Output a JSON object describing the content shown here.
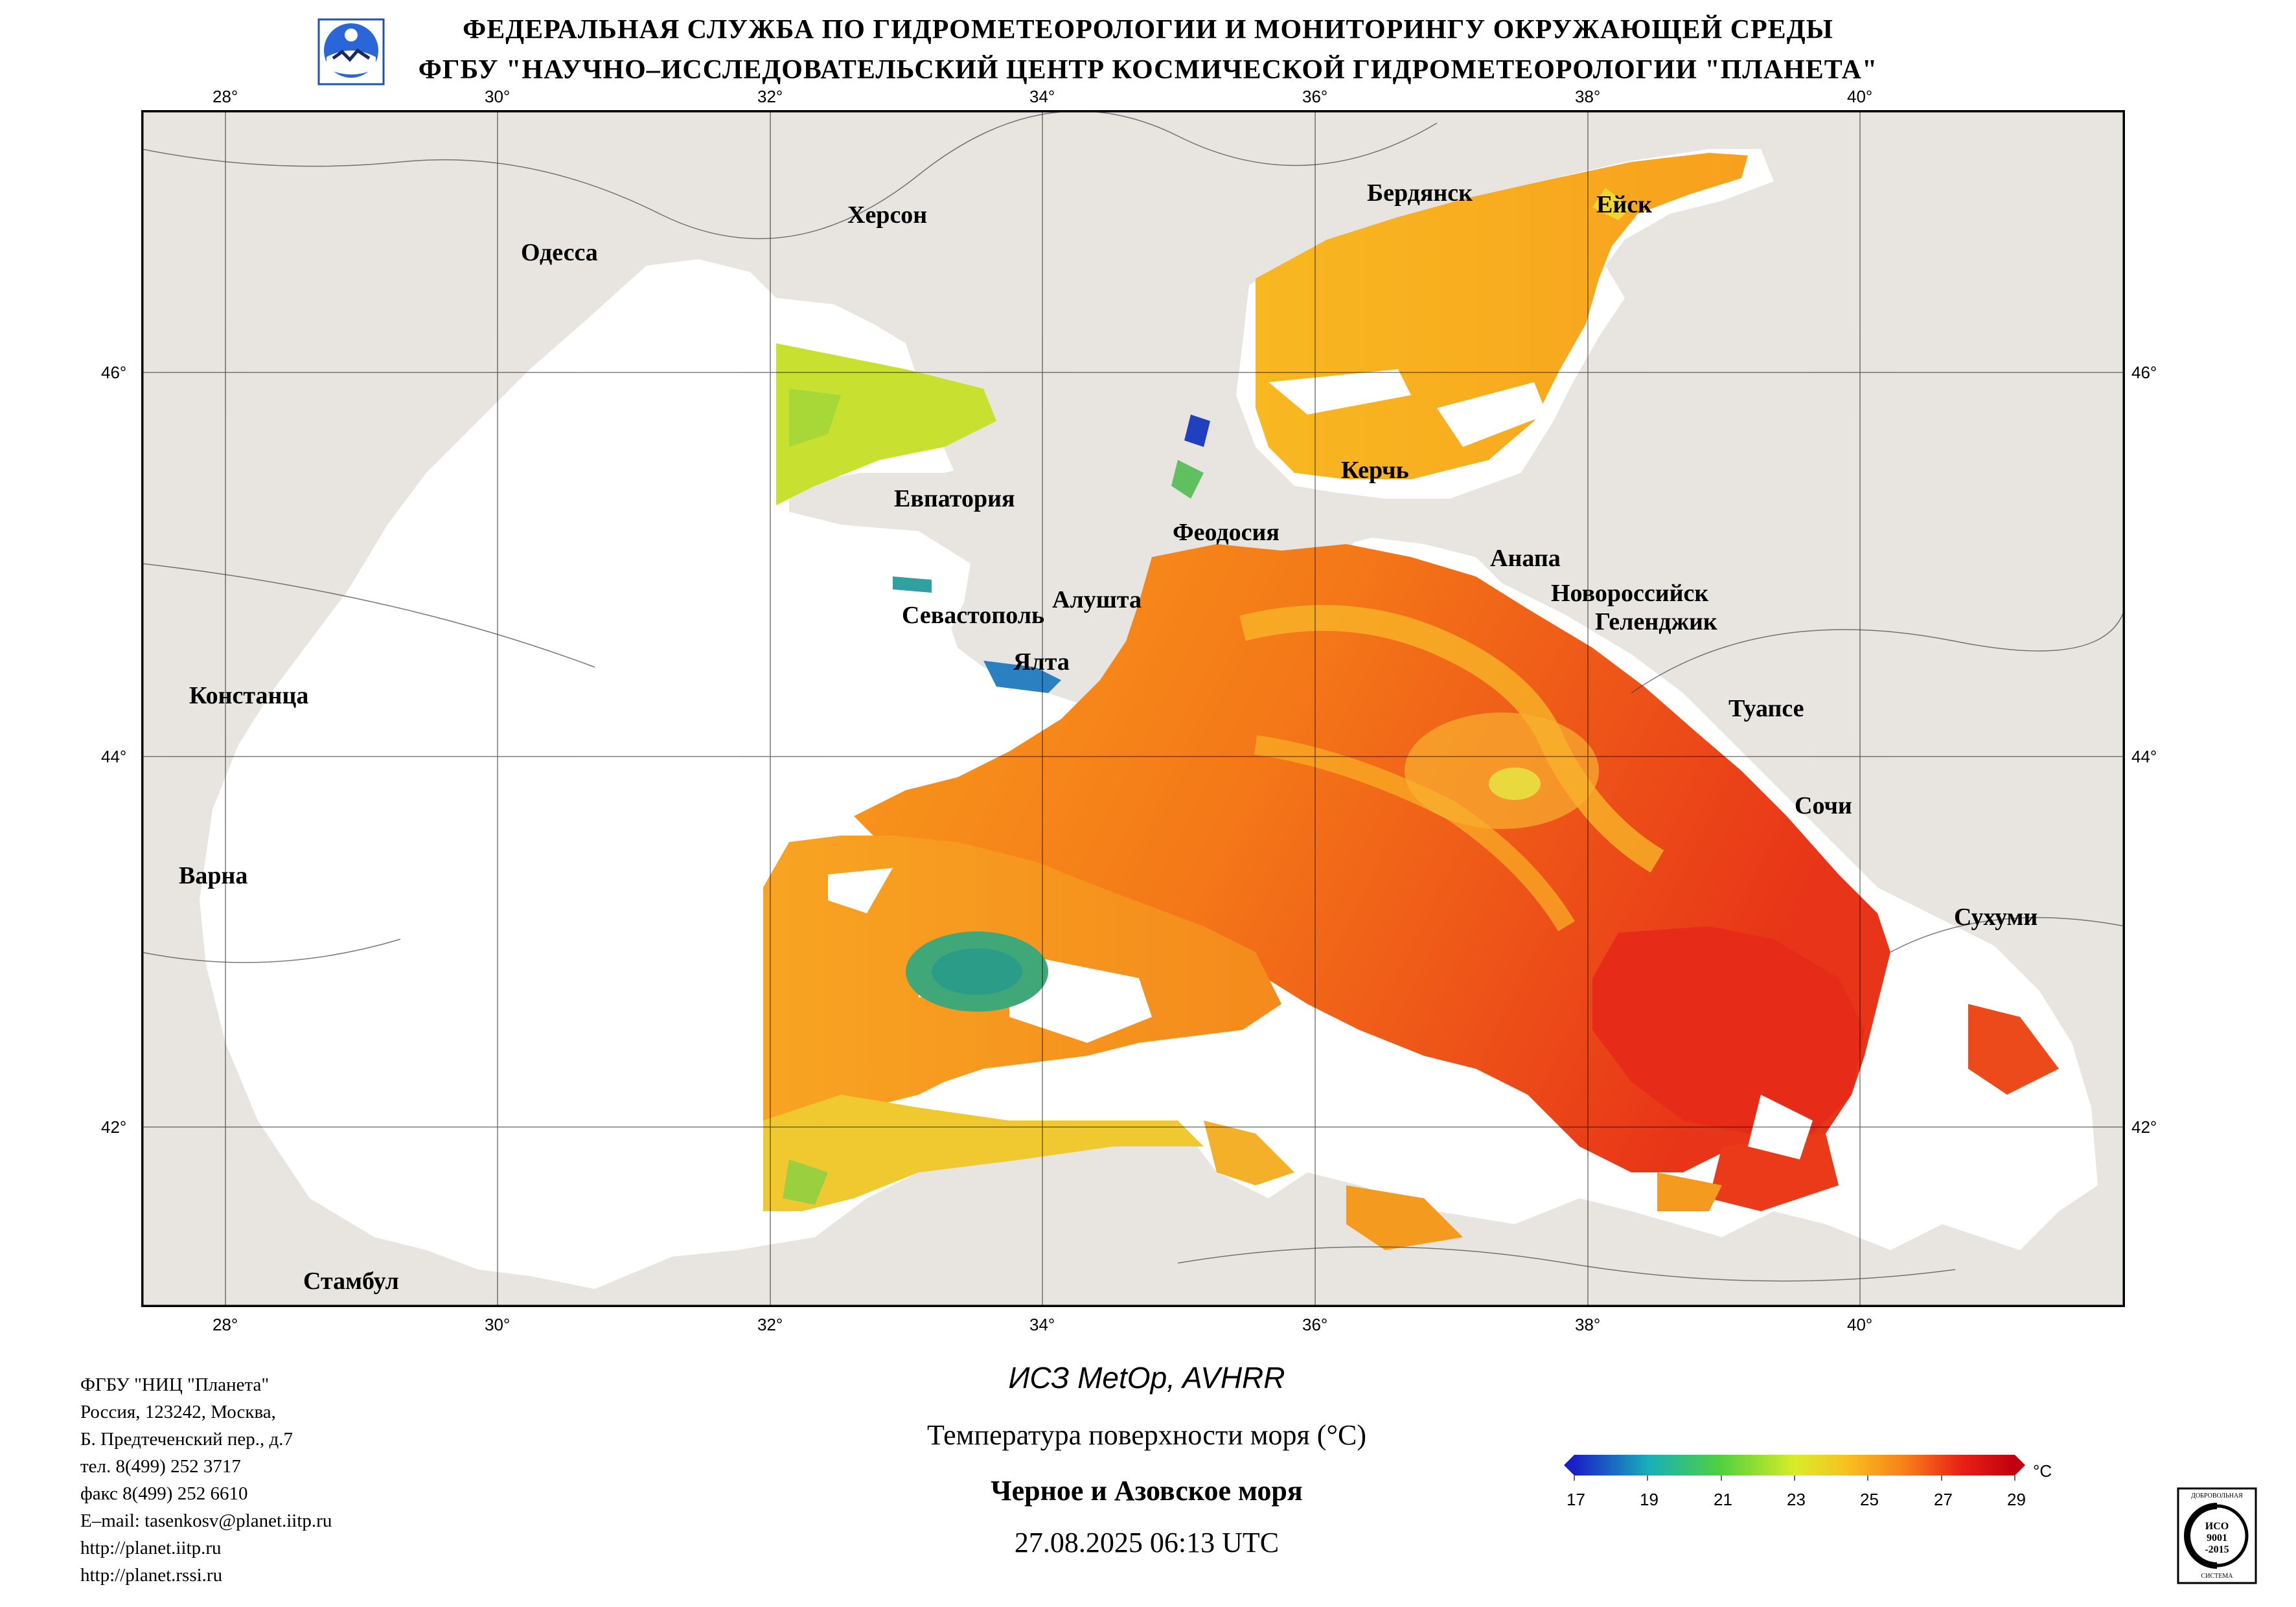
{
  "header": {
    "line1": "ФЕДЕРАЛЬНАЯ СЛУЖБА ПО ГИДРОМЕТЕОРОЛОГИИ И МОНИТОРИНГУ ОКРУЖАЮЩЕЙ СРЕДЫ",
    "line2": "ФГБУ \"НАУЧНО–ИССЛЕДОВАТЕЛЬСКИЙ ЦЕНТР КОСМИЧЕСКОЙ ГИДРОМЕТЕОРОЛОГИИ \"ПЛАНЕТА\""
  },
  "map": {
    "lon_ticks": [
      "28°",
      "30°",
      "32°",
      "34°",
      "36°",
      "38°",
      "40°"
    ],
    "lat_ticks": [
      "46°",
      "44°",
      "42°"
    ],
    "cities": {
      "kherson": "Херсон",
      "odessa": "Одесса",
      "berdyansk": "Бердянск",
      "yeysk": "Ейск",
      "kerch": "Керчь",
      "evpatoria": "Евпатория",
      "feodosia": "Феодосия",
      "anapa": "Анапа",
      "novorossiysk": "Новороссийск",
      "gelendzhik": "Геленджик",
      "alushta": "Алушта",
      "sevastopol": "Севастополь",
      "yalta": "Ялта",
      "constanta": "Констанца",
      "tuapse": "Туапсе",
      "sochi": "Сочи",
      "varna": "Варна",
      "sukhumi": "Сухуми",
      "istanbul": "Стамбул"
    },
    "colors": {
      "land": "#e8e5e1",
      "sea_no_data": "#ffffff",
      "warm": "#f06010",
      "hot": "#e02818",
      "mild": "#f8a020",
      "cool": "#e8e020",
      "cold": "#40b070"
    }
  },
  "footer": {
    "address_lines": [
      "ФГБУ \"НИЦ \"Планета\"",
      "Россия, 123242, Москва,",
      "Б. Предтеченский пер., д.7",
      "тел. 8(499) 252 3717",
      "факс 8(499) 252 6610",
      "E–mail: tasenkosv@planet.iitp.ru",
      "http://planet.iitp.ru",
      "http://planet.rssi.ru"
    ],
    "satellite": "ИСЗ MetOp, AVHRR",
    "parameter": "Температура поверхности моря (°C)",
    "region": "Черное и Азовское моря",
    "datetime": "27.08.2025 06:13 UTC"
  },
  "legend": {
    "unit": "°C",
    "ticks": [
      "17",
      "19",
      "21",
      "23",
      "25",
      "27",
      "29"
    ],
    "min": 17,
    "max": 29,
    "stops": [
      "#1a20c8",
      "#18b0b8",
      "#50d040",
      "#d8ec28",
      "#f8c020",
      "#f88018",
      "#e82014",
      "#c00010"
    ]
  },
  "iso_badge": {
    "top": "ДОБРОВОЛЬНАЯ",
    "line1": "ИСО",
    "line2": "9001",
    "line3": "-2015",
    "bottom": "СИСТЕМА"
  }
}
